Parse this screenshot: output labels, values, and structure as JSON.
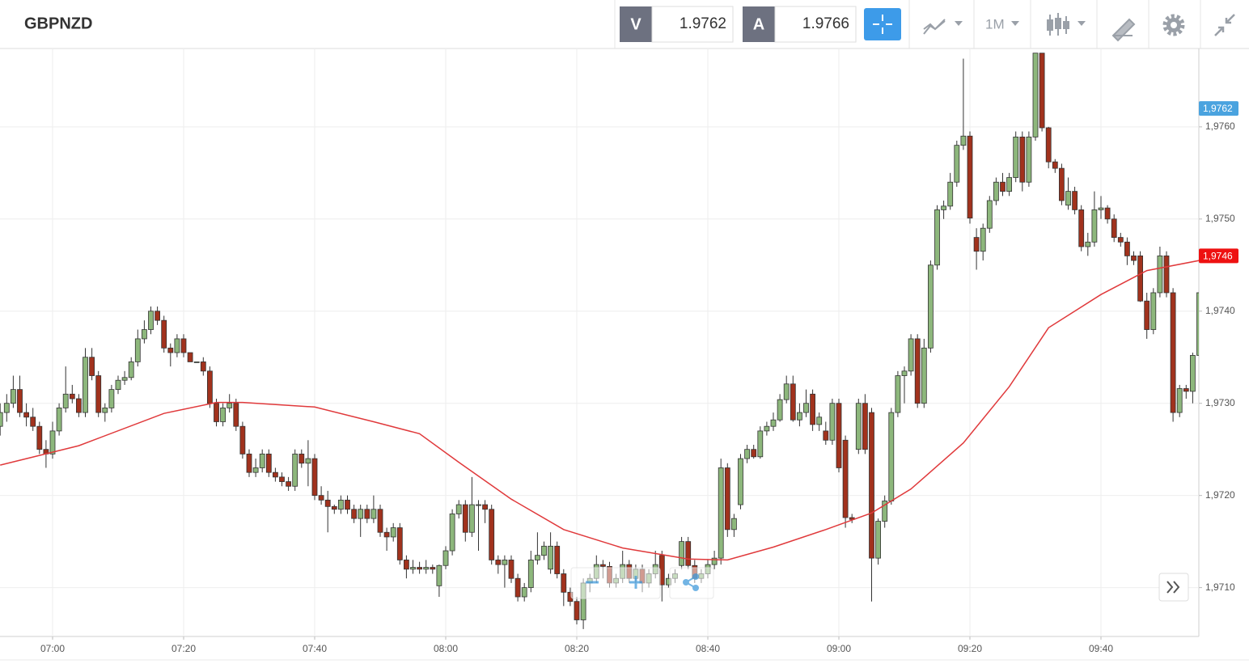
{
  "header": {
    "symbol": "GBPNZD",
    "sell_label": "V",
    "sell_price": "1.9762",
    "buy_label": "A",
    "buy_price": "1.9766",
    "timeframe": "1M"
  },
  "chart_data": {
    "type": "candlestick",
    "categories": [
      "06:52",
      "06:53",
      "06:54",
      "06:55",
      "06:56",
      "06:57",
      "06:58",
      "06:59",
      "07:00",
      "07:01",
      "07:02",
      "07:03",
      "07:04",
      "07:05",
      "07:06",
      "07:07",
      "07:08",
      "07:09",
      "07:10",
      "07:11",
      "07:12",
      "07:13",
      "07:14",
      "07:15",
      "07:16",
      "07:17",
      "07:18",
      "07:19",
      "07:20",
      "07:21",
      "07:22",
      "07:23",
      "07:24",
      "07:25",
      "07:26",
      "07:27",
      "07:28",
      "07:29",
      "07:30",
      "07:31",
      "07:32",
      "07:33",
      "07:34",
      "07:35",
      "07:36",
      "07:37",
      "07:38",
      "07:39",
      "07:40",
      "07:41",
      "07:42",
      "07:43",
      "07:44",
      "07:45",
      "07:46",
      "07:47",
      "07:48",
      "07:49",
      "07:50",
      "07:51",
      "07:52",
      "07:53",
      "07:54",
      "07:55",
      "07:56",
      "07:57",
      "07:58",
      "07:59",
      "08:00",
      "08:01",
      "08:02",
      "08:03",
      "08:04",
      "08:05",
      "08:06",
      "08:07",
      "08:08",
      "08:09",
      "08:10",
      "08:11",
      "08:12",
      "08:13",
      "08:14",
      "08:15",
      "08:16",
      "08:17",
      "08:18",
      "08:19",
      "08:20",
      "08:21",
      "08:22",
      "08:23",
      "08:24",
      "08:25",
      "08:26",
      "08:27",
      "08:28",
      "08:29",
      "08:30",
      "08:31",
      "08:32",
      "08:33",
      "08:34",
      "08:35",
      "08:36",
      "08:37",
      "08:38",
      "08:39",
      "08:40",
      "08:41",
      "08:42",
      "08:43",
      "08:44",
      "08:45",
      "08:46",
      "08:47",
      "08:48",
      "08:49",
      "08:50",
      "08:51",
      "08:52",
      "08:53",
      "08:54",
      "08:55",
      "08:56",
      "08:57",
      "08:58",
      "08:59",
      "09:00",
      "09:01",
      "09:02",
      "09:03",
      "09:04",
      "09:05",
      "09:06",
      "09:07",
      "09:08",
      "09:09",
      "09:10",
      "09:11",
      "09:12",
      "09:13",
      "09:14",
      "09:15",
      "09:16",
      "09:17",
      "09:18",
      "09:19",
      "09:20",
      "09:21",
      "09:22",
      "09:23",
      "09:24",
      "09:25",
      "09:26",
      "09:27",
      "09:28",
      "09:29",
      "09:30",
      "09:31",
      "09:32",
      "09:33",
      "09:34",
      "09:35",
      "09:36",
      "09:37",
      "09:38",
      "09:39",
      "09:40",
      "09:41",
      "09:42",
      "09:43",
      "09:44",
      "09:45",
      "09:46",
      "09:47",
      "09:48",
      "09:49",
      "09:50",
      "09:51",
      "09:52",
      "09:53",
      "09:54",
      "09:55"
    ],
    "candles": [
      [
        1.97275,
        1.973,
        1.97265,
        1.9729
      ],
      [
        1.9729,
        1.9731,
        1.9728,
        1.973
      ],
      [
        1.973,
        1.9733,
        1.97295,
        1.97315
      ],
      [
        1.97315,
        1.9733,
        1.97285,
        1.9729
      ],
      [
        1.9729,
        1.973,
        1.97275,
        1.97285
      ],
      [
        1.97285,
        1.97295,
        1.9727,
        1.97275
      ],
      [
        1.97275,
        1.9728,
        1.97245,
        1.9725
      ],
      [
        1.9725,
        1.9726,
        1.9723,
        1.97245
      ],
      [
        1.97245,
        1.9728,
        1.9724,
        1.9727
      ],
      [
        1.9727,
        1.973,
        1.97265,
        1.97295
      ],
      [
        1.97295,
        1.9734,
        1.9729,
        1.9731
      ],
      [
        1.9731,
        1.9732,
        1.973,
        1.97305
      ],
      [
        1.97305,
        1.9731,
        1.97285,
        1.9729
      ],
      [
        1.9729,
        1.9736,
        1.97285,
        1.9735
      ],
      [
        1.9735,
        1.9736,
        1.97325,
        1.9733
      ],
      [
        1.9733,
        1.97335,
        1.97285,
        1.9729
      ],
      [
        1.9729,
        1.973,
        1.9728,
        1.97295
      ],
      [
        1.97295,
        1.9732,
        1.9729,
        1.97315
      ],
      [
        1.97315,
        1.9733,
        1.9731,
        1.97325
      ],
      [
        1.97325,
        1.97335,
        1.9732,
        1.97328
      ],
      [
        1.97328,
        1.9735,
        1.97325,
        1.97345
      ],
      [
        1.97345,
        1.9738,
        1.9734,
        1.9737
      ],
      [
        1.9737,
        1.9739,
        1.97365,
        1.9738
      ],
      [
        1.9738,
        1.97405,
        1.97375,
        1.974
      ],
      [
        1.974,
        1.97405,
        1.97385,
        1.9739
      ],
      [
        1.9739,
        1.97395,
        1.97355,
        1.9736
      ],
      [
        1.9736,
        1.97365,
        1.9734,
        1.97355
      ],
      [
        1.97355,
        1.97375,
        1.9735,
        1.9737
      ],
      [
        1.9737,
        1.97375,
        1.9735,
        1.97355
      ],
      [
        1.97355,
        1.97355,
        1.97345,
        1.97345
      ],
      [
        1.97345,
        1.97345,
        1.97345,
        1.97345
      ],
      [
        1.97345,
        1.9735,
        1.9733,
        1.97335
      ],
      [
        1.97335,
        1.9734,
        1.97295,
        1.973
      ],
      [
        1.973,
        1.97305,
        1.97275,
        1.9728
      ],
      [
        1.9728,
        1.973,
        1.97275,
        1.97295
      ],
      [
        1.97295,
        1.9731,
        1.9729,
        1.973
      ],
      [
        1.973,
        1.97305,
        1.9727,
        1.97275
      ],
      [
        1.97275,
        1.9728,
        1.9724,
        1.97245
      ],
      [
        1.97245,
        1.9725,
        1.9722,
        1.97225
      ],
      [
        1.97225,
        1.9724,
        1.9722,
        1.9723
      ],
      [
        1.9723,
        1.9725,
        1.97225,
        1.97245
      ],
      [
        1.97245,
        1.9725,
        1.9722,
        1.97225
      ],
      [
        1.97225,
        1.9723,
        1.97215,
        1.9722
      ],
      [
        1.9722,
        1.97225,
        1.9721,
        1.97215
      ],
      [
        1.97215,
        1.9722,
        1.97205,
        1.9721
      ],
      [
        1.9721,
        1.9725,
        1.97205,
        1.97245
      ],
      [
        1.97245,
        1.9725,
        1.9723,
        1.97235
      ],
      [
        1.97235,
        1.9726,
        1.9721,
        1.9724
      ],
      [
        1.9724,
        1.97245,
        1.97195,
        1.972
      ],
      [
        1.972,
        1.9721,
        1.9719,
        1.97195
      ],
      [
        1.97195,
        1.97205,
        1.9716,
        1.97188
      ],
      [
        1.97188,
        1.9719,
        1.9718,
        1.97185
      ],
      [
        1.97185,
        1.972,
        1.9718,
        1.97195
      ],
      [
        1.97195,
        1.972,
        1.9718,
        1.97185
      ],
      [
        1.97185,
        1.9719,
        1.9717,
        1.97175
      ],
      [
        1.97175,
        1.9719,
        1.97155,
        1.97185
      ],
      [
        1.97185,
        1.9719,
        1.9717,
        1.97175
      ],
      [
        1.97175,
        1.972,
        1.9717,
        1.97185
      ],
      [
        1.97185,
        1.9719,
        1.97155,
        1.9716
      ],
      [
        1.9716,
        1.97165,
        1.9714,
        1.97155
      ],
      [
        1.97155,
        1.9717,
        1.9715,
        1.97165
      ],
      [
        1.97165,
        1.9717,
        1.97125,
        1.9713
      ],
      [
        1.9713,
        1.97135,
        1.9711,
        1.9712
      ],
      [
        1.9712,
        1.9713,
        1.97115,
        1.97122
      ],
      [
        1.97122,
        1.97128,
        1.97115,
        1.9712
      ],
      [
        1.9712,
        1.9713,
        1.97115,
        1.97122
      ],
      [
        1.97122,
        1.97125,
        1.97115,
        1.9712
      ],
      [
        1.97102,
        1.97125,
        1.9709,
        1.97124
      ],
      [
        1.97124,
        1.97145,
        1.9712,
        1.9714
      ],
      [
        1.9714,
        1.97185,
        1.97135,
        1.9718
      ],
      [
        1.9718,
        1.97195,
        1.97175,
        1.9719
      ],
      [
        1.9719,
        1.97195,
        1.9715,
        1.9716
      ],
      [
        1.9716,
        1.9722,
        1.97155,
        1.9719
      ],
      [
        1.9719,
        1.97195,
        1.9714,
        1.9719
      ],
      [
        1.9719,
        1.97195,
        1.9717,
        1.97185
      ],
      [
        1.97185,
        1.9719,
        1.97125,
        1.9713
      ],
      [
        1.9713,
        1.97135,
        1.97115,
        1.97125
      ],
      [
        1.97125,
        1.97135,
        1.971,
        1.9713
      ],
      [
        1.9713,
        1.97135,
        1.97105,
        1.9711
      ],
      [
        1.9711,
        1.97115,
        1.97085,
        1.9709
      ],
      [
        1.9709,
        1.97105,
        1.97085,
        1.971
      ],
      [
        1.971,
        1.9714,
        1.97095,
        1.9713
      ],
      [
        1.9713,
        1.9716,
        1.97125,
        1.97135
      ],
      [
        1.97135,
        1.9715,
        1.9713,
        1.97145
      ],
      [
        1.9712,
        1.9716,
        1.97115,
        1.97145
      ],
      [
        1.97145,
        1.9715,
        1.9711,
        1.97115
      ],
      [
        1.97115,
        1.9712,
        1.9708,
        1.97095
      ],
      [
        1.97095,
        1.971,
        1.9708,
        1.97085
      ],
      [
        1.97085,
        1.9709,
        1.9706,
        1.97065
      ],
      [
        1.97065,
        1.9711,
        1.97055,
        1.97105
      ],
      [
        1.97105,
        1.97115,
        1.97095,
        1.9711
      ],
      [
        1.9711,
        1.97135,
        1.97105,
        1.97125
      ],
      [
        1.97125,
        1.9713,
        1.9711,
        1.97123
      ],
      [
        1.97123,
        1.97128,
        1.971,
        1.97105
      ],
      [
        1.97105,
        1.97115,
        1.971,
        1.9711
      ],
      [
        1.9711,
        1.9714,
        1.97105,
        1.97125
      ],
      [
        1.97125,
        1.9713,
        1.97105,
        1.9711
      ],
      [
        1.9711,
        1.97125,
        1.97105,
        1.9712
      ],
      [
        1.9712,
        1.97125,
        1.97095,
        1.97105
      ],
      [
        1.97105,
        1.9712,
        1.971,
        1.97115
      ],
      [
        1.97115,
        1.9714,
        1.9711,
        1.97125
      ],
      [
        1.97135,
        1.9714,
        1.97085,
        1.97103
      ],
      [
        1.97103,
        1.97115,
        1.971,
        1.9711
      ],
      [
        1.9711,
        1.9712,
        1.97105,
        1.97115
      ],
      [
        1.97124,
        1.97155,
        1.9712,
        1.9715
      ],
      [
        1.9715,
        1.97155,
        1.9712,
        1.97124
      ],
      [
        1.97124,
        1.9713,
        1.97105,
        1.9711
      ],
      [
        1.9711,
        1.9712,
        1.97105,
        1.97115
      ],
      [
        1.97115,
        1.9713,
        1.9711,
        1.97125
      ],
      [
        1.97125,
        1.9714,
        1.9712,
        1.97132
      ],
      [
        1.97132,
        1.9724,
        1.97125,
        1.9723
      ],
      [
        1.9723,
        1.97235,
        1.97155,
        1.97163
      ],
      [
        1.97163,
        1.9718,
        1.97155,
        1.97175
      ],
      [
        1.9719,
        1.97245,
        1.97185,
        1.9724
      ],
      [
        1.9724,
        1.97255,
        1.97235,
        1.9725
      ],
      [
        1.9725,
        1.97255,
        1.9724,
        1.97242
      ],
      [
        1.97242,
        1.97275,
        1.9724,
        1.9727
      ],
      [
        1.9727,
        1.9728,
        1.97265,
        1.97275
      ],
      [
        1.97275,
        1.9729,
        1.9727,
        1.97282
      ],
      [
        1.97282,
        1.9731,
        1.9728,
        1.97304
      ],
      [
        1.97304,
        1.9733,
        1.973,
        1.97321
      ],
      [
        1.97321,
        1.9733,
        1.9728,
        1.97282
      ],
      [
        1.97282,
        1.973,
        1.97275,
        1.9729
      ],
      [
        1.9729,
        1.97315,
        1.97285,
        1.973
      ],
      [
        1.9731,
        1.97315,
        1.9727,
        1.97277
      ],
      [
        1.97277,
        1.9729,
        1.9727,
        1.97285
      ],
      [
        1.9727,
        1.9728,
        1.97255,
        1.9726
      ],
      [
        1.9726,
        1.97305,
        1.97255,
        1.973
      ],
      [
        1.973,
        1.97305,
        1.97225,
        1.9723
      ],
      [
        1.9726,
        1.97265,
        1.97165,
        1.97176
      ],
      [
        1.97176,
        1.9718,
        1.9717,
        1.97174
      ],
      [
        1.9725,
        1.97305,
        1.97245,
        1.973
      ],
      [
        1.973,
        1.9731,
        1.97245,
        1.9725
      ],
      [
        1.9729,
        1.97295,
        1.97085,
        1.97132
      ],
      [
        1.97132,
        1.97175,
        1.97125,
        1.97172
      ],
      [
        1.97172,
        1.972,
        1.97165,
        1.97194
      ],
      [
        1.97194,
        1.97295,
        1.9719,
        1.9729
      ],
      [
        1.9729,
        1.97335,
        1.97285,
        1.9733
      ],
      [
        1.9733,
        1.9734,
        1.973,
        1.97335
      ],
      [
        1.97335,
        1.97375,
        1.9733,
        1.9737
      ],
      [
        1.9737,
        1.97375,
        1.97295,
        1.973
      ],
      [
        1.973,
        1.9737,
        1.97295,
        1.9736
      ],
      [
        1.9736,
        1.97455,
        1.97355,
        1.9745
      ],
      [
        1.9745,
        1.97515,
        1.97445,
        1.9751
      ],
      [
        1.9751,
        1.9752,
        1.975,
        1.97514
      ],
      [
        1.97514,
        1.9755,
        1.9751,
        1.9754
      ],
      [
        1.9754,
        1.97585,
        1.97535,
        1.9758
      ],
      [
        1.9758,
        1.97674,
        1.97575,
        1.9759
      ],
      [
        1.9759,
        1.97595,
        1.97495,
        1.97501
      ],
      [
        1.9748,
        1.9749,
        1.97445,
        1.97465
      ],
      [
        1.97465,
        1.97495,
        1.97455,
        1.9749
      ],
      [
        1.9749,
        1.97525,
        1.97485,
        1.9752
      ],
      [
        1.9752,
        1.97545,
        1.97515,
        1.9754
      ],
      [
        1.9754,
        1.9755,
        1.97525,
        1.9753
      ],
      [
        1.9753,
        1.9755,
        1.97525,
        1.97545
      ],
      [
        1.97545,
        1.97595,
        1.9754,
        1.97589
      ],
      [
        1.97589,
        1.97595,
        1.9753,
        1.9754
      ],
      [
        1.9754,
        1.97595,
        1.97535,
        1.97589
      ],
      [
        1.97589,
        1.9768,
        1.97585,
        1.9768
      ],
      [
        1.9768,
        1.9768,
        1.97595,
        1.97599
      ],
      [
        1.97599,
        1.976,
        1.97555,
        1.97562
      ],
      [
        1.97562,
        1.97565,
        1.9755,
        1.97555
      ],
      [
        1.97555,
        1.9756,
        1.97515,
        1.9752
      ],
      [
        1.97515,
        1.97545,
        1.9751,
        1.9753
      ],
      [
        1.9753,
        1.97535,
        1.97505,
        1.9751
      ],
      [
        1.9751,
        1.97515,
        1.97465,
        1.9747
      ],
      [
        1.9747,
        1.97485,
        1.9746,
        1.97475
      ],
      [
        1.97475,
        1.9753,
        1.9747,
        1.9751
      ],
      [
        1.9751,
        1.97525,
        1.975,
        1.97512
      ],
      [
        1.97512,
        1.97515,
        1.97495,
        1.975
      ],
      [
        1.975,
        1.97505,
        1.97475,
        1.9748
      ],
      [
        1.9748,
        1.97485,
        1.9747,
        1.97475
      ],
      [
        1.97475,
        1.9748,
        1.9745,
        1.9746
      ],
      [
        1.9746,
        1.97465,
        1.9745,
        1.97455
      ],
      [
        1.9746,
        1.97465,
        1.9741,
        1.97411
      ],
      [
        1.97411,
        1.9742,
        1.9737,
        1.9738
      ],
      [
        1.9738,
        1.97425,
        1.97375,
        1.9742
      ],
      [
        1.9742,
        1.9747,
        1.97415,
        1.9746
      ],
      [
        1.9746,
        1.97465,
        1.97415,
        1.9742
      ],
      [
        1.9742,
        1.97425,
        1.9728,
        1.9729
      ],
      [
        1.9729,
        1.9732,
        1.97285,
        1.97316
      ],
      [
        1.97316,
        1.9732,
        1.97305,
        1.97313
      ],
      [
        1.97313,
        1.97355,
        1.973,
        1.97352
      ],
      [
        1.97352,
        1.9743,
        1.9735,
        1.9742
      ]
    ],
    "up_color": "#8db77c",
    "down_color": "#a1321d",
    "moving_average": {
      "color": "#e0393b",
      "x": [
        "06:52",
        "07:04",
        "07:17",
        "07:25",
        "07:29",
        "07:40",
        "07:49",
        "07:56",
        "08:02",
        "08:10",
        "08:18",
        "08:27",
        "08:37",
        "08:43",
        "08:50",
        "08:58",
        "09:05",
        "09:11",
        "09:19",
        "09:26",
        "09:32",
        "09:40",
        "09:47",
        "09:55"
      ],
      "values": [
        1.97233,
        1.97254,
        1.97289,
        1.97301,
        1.97301,
        1.97296,
        1.9728,
        1.97267,
        1.97236,
        1.97196,
        1.97163,
        1.97143,
        1.97131,
        1.9713,
        1.97144,
        1.97163,
        1.97181,
        1.97207,
        1.97257,
        1.97318,
        1.97382,
        1.97418,
        1.97444,
        1.97455
      ]
    },
    "ylim": [
      1.97047,
      1.97685
    ],
    "yticks": [
      {
        "value": 1.971,
        "label": "1,9710"
      },
      {
        "value": 1.972,
        "label": "1,9720"
      },
      {
        "value": 1.973,
        "label": "1,9730"
      },
      {
        "value": 1.974,
        "label": "1,9740"
      },
      {
        "value": 1.975,
        "label": "1,9750"
      },
      {
        "value": 1.976,
        "label": "1,9760"
      }
    ],
    "xticks": [
      "07:00",
      "07:20",
      "07:40",
      "08:00",
      "08:20",
      "08:40",
      "09:00",
      "09:20",
      "09:40"
    ],
    "price_labels": [
      {
        "value": 1.9762,
        "label": "1,9762",
        "color": "#4aa3df"
      },
      {
        "value": 1.9746,
        "label": "1,9746",
        "color": "#ee1111"
      }
    ],
    "grid": true
  }
}
